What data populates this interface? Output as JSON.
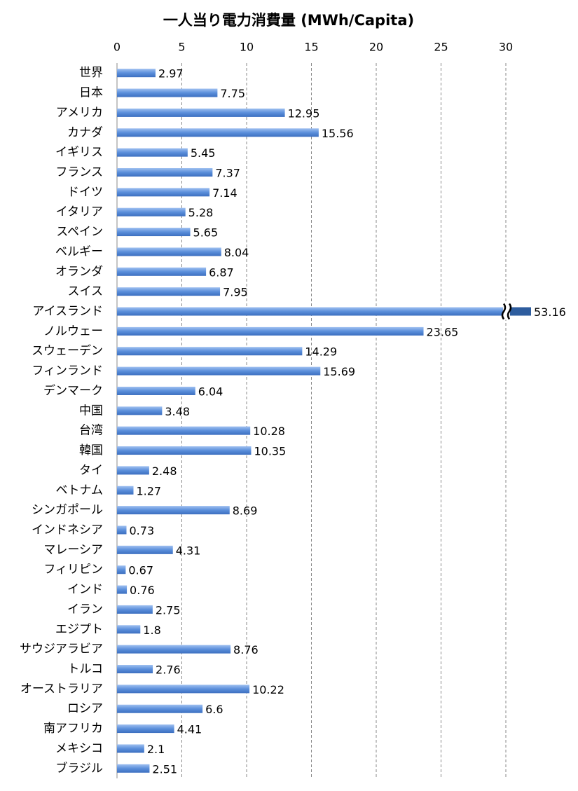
{
  "chart_data": {
    "type": "bar",
    "orientation": "horizontal",
    "title": "一人当り電力消費量 (MWh/Capita)",
    "categories": [
      "世界",
      "日本",
      "アメリカ",
      "カナダ",
      "イギリス",
      "フランス",
      "ドイツ",
      "イタリア",
      "スペイン",
      "ベルギー",
      "オランダ",
      "スイス",
      "アイスランド",
      "ノルウェー",
      "スウェーデン",
      "フィンランド",
      "デンマーク",
      "中国",
      "台湾",
      "韓国",
      "タイ",
      "ベトナム",
      "シンガポール",
      "インドネシア",
      "マレーシア",
      "フィリピン",
      "インド",
      "イラン",
      "エジプト",
      "サウジアラビア",
      "トルコ",
      "オーストラリア",
      "ロシア",
      "南アフリカ",
      "メキシコ",
      "ブラジル"
    ],
    "values": [
      2.97,
      7.75,
      12.95,
      15.56,
      5.45,
      7.37,
      7.14,
      5.28,
      5.65,
      8.04,
      6.87,
      7.95,
      53.16,
      23.65,
      14.29,
      15.69,
      6.04,
      3.48,
      10.28,
      10.35,
      2.48,
      1.27,
      8.69,
      0.73,
      4.31,
      0.67,
      0.76,
      2.75,
      1.8,
      8.76,
      2.76,
      10.22,
      6.6,
      4.41,
      2.1,
      2.51
    ],
    "color": "#5b8fdb",
    "xlim": [
      0,
      30
    ],
    "xticks": [
      0,
      5,
      10,
      15,
      20,
      25,
      30
    ],
    "grid": true,
    "axis_break": true
  }
}
